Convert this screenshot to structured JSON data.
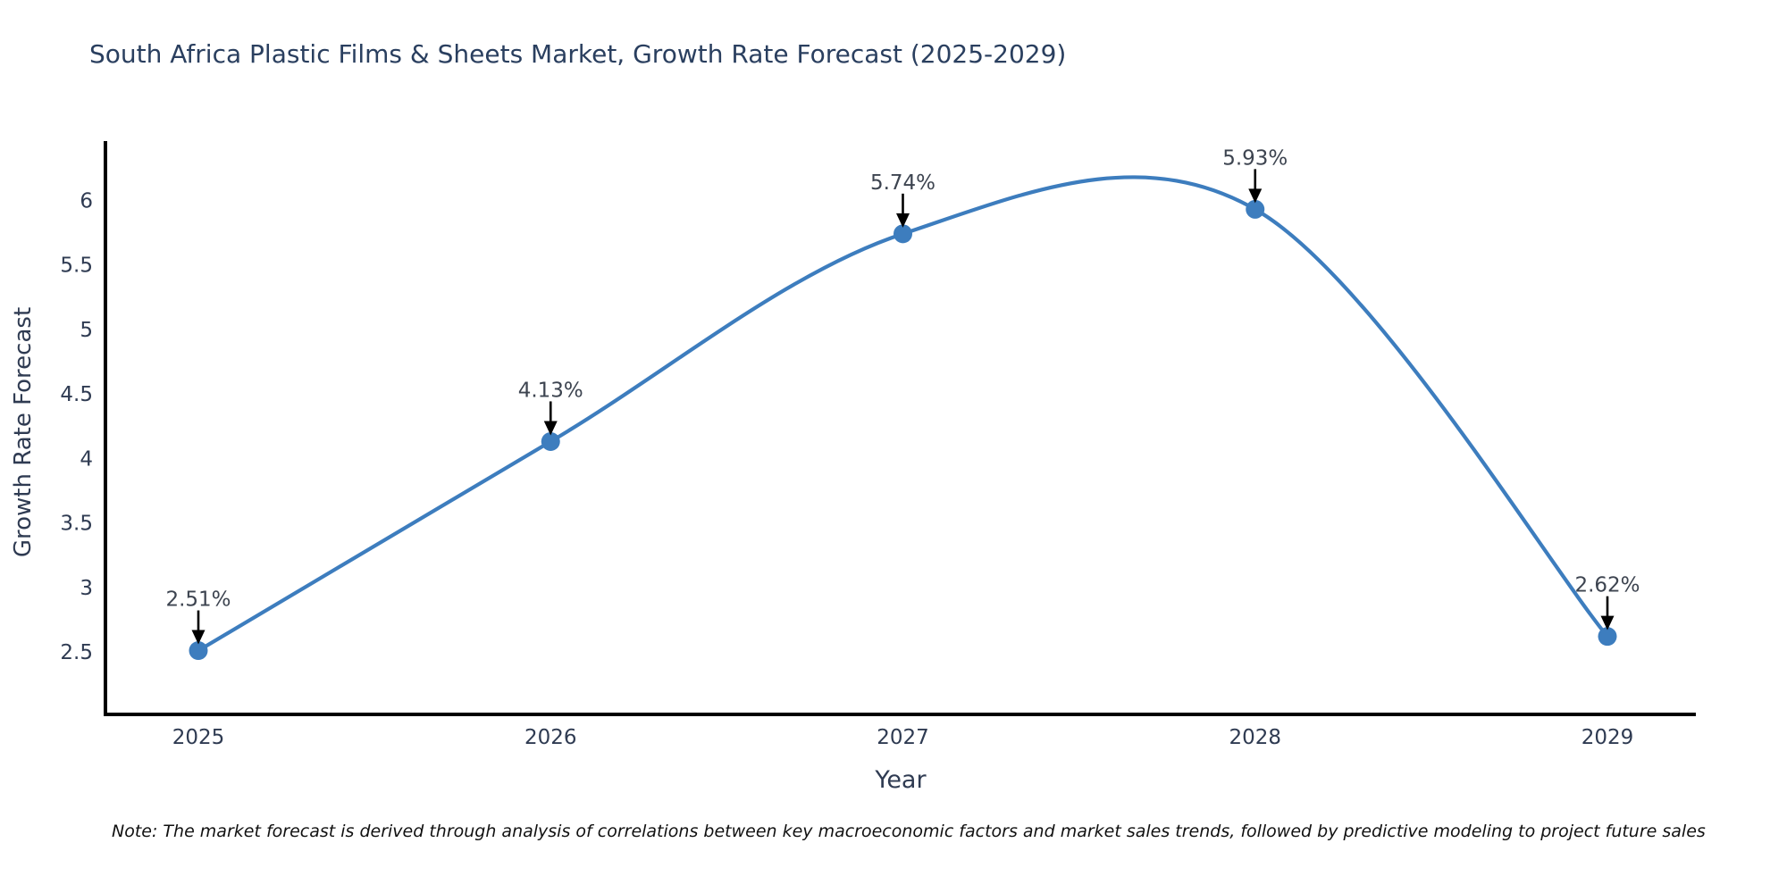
{
  "title": "South Africa Plastic Films & Sheets Market, Growth Rate Forecast (2025-2029)",
  "note": "Note: The market forecast is derived through analysis of correlations between key macroeconomic factors and market sales trends, followed by predictive modeling to project future sales",
  "colors": {
    "accent_blue": "#3d7dbe",
    "axis_line": "#000000",
    "title_text": "#2a3f5f",
    "tick_text": "#2f3b52",
    "annotation_text": "#3d4450",
    "arrow": "#000000",
    "note_text": "#111111",
    "background": "#ffffff"
  },
  "chart_data": {
    "type": "line",
    "title": "South Africa Plastic Films & Sheets Market, Growth Rate Forecast (2025-2029)",
    "xlabel": "Year",
    "ylabel": "Growth Rate Forecast",
    "categories": [
      "2025",
      "2026",
      "2027",
      "2028",
      "2029"
    ],
    "series": [
      {
        "name": "Growth Rate Forecast",
        "values": [
          2.51,
          4.13,
          5.74,
          5.93,
          2.62
        ],
        "point_labels": [
          "2.51%",
          "4.13%",
          "5.74%",
          "5.93%",
          "2.62%"
        ]
      }
    ],
    "yticks": [
      2.5,
      3,
      3.5,
      4,
      4.5,
      5,
      5.5,
      6
    ],
    "ylim": [
      2.0,
      6.45
    ],
    "grid": false,
    "legend_position": "none",
    "line_shape": "spline",
    "marker": "circle",
    "annotations": "value labels with black down-arrows above each point"
  }
}
